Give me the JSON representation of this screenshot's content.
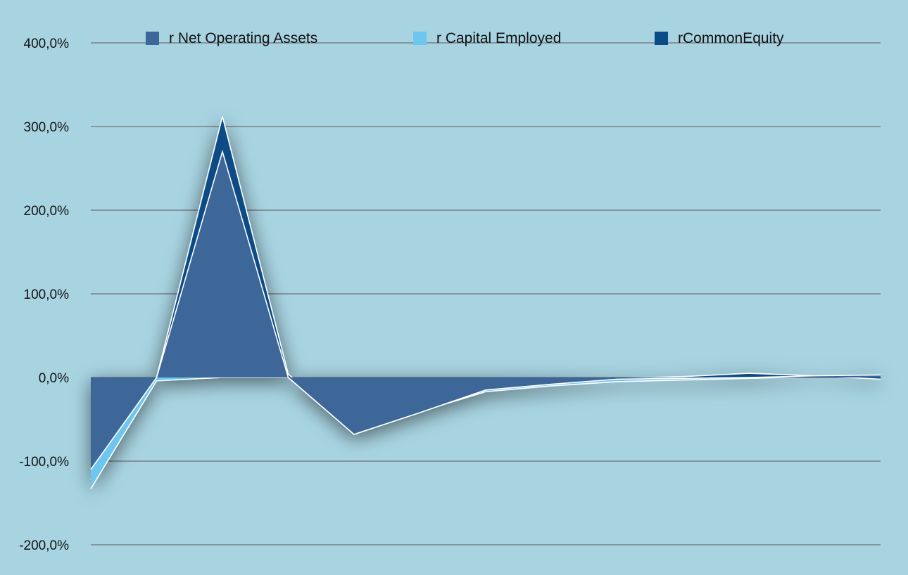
{
  "chart_data": {
    "type": "area",
    "x": [
      1,
      2,
      3,
      4,
      5,
      6,
      7,
      8,
      9,
      10,
      11,
      12,
      13
    ],
    "series": [
      {
        "name": "r Net Operating Assets",
        "color": "#3e6699",
        "values": [
          -110,
          0,
          270,
          0,
          -68,
          -42,
          -15,
          -8,
          -2,
          -1,
          0,
          2,
          3
        ]
      },
      {
        "name": "r Capital Employed",
        "color": "#6cc6ef",
        "values": [
          -133,
          -4,
          0,
          0,
          -66,
          -41,
          -17,
          -10,
          -5,
          -3,
          -1,
          1,
          2
        ]
      },
      {
        "name": "rCommonEquity",
        "color": "#0a4c86",
        "values": [
          -122,
          0,
          312,
          4,
          -67,
          -41,
          -14,
          -7,
          -1,
          1,
          5,
          2,
          -2
        ]
      }
    ],
    "yticks": [
      "400,0%",
      "300,0%",
      "200,0%",
      "100,0%",
      "0,0%",
      "-100,0%",
      "-200,0%"
    ],
    "ylim": [
      -200,
      400
    ],
    "grid": true,
    "legend_position": "top"
  }
}
